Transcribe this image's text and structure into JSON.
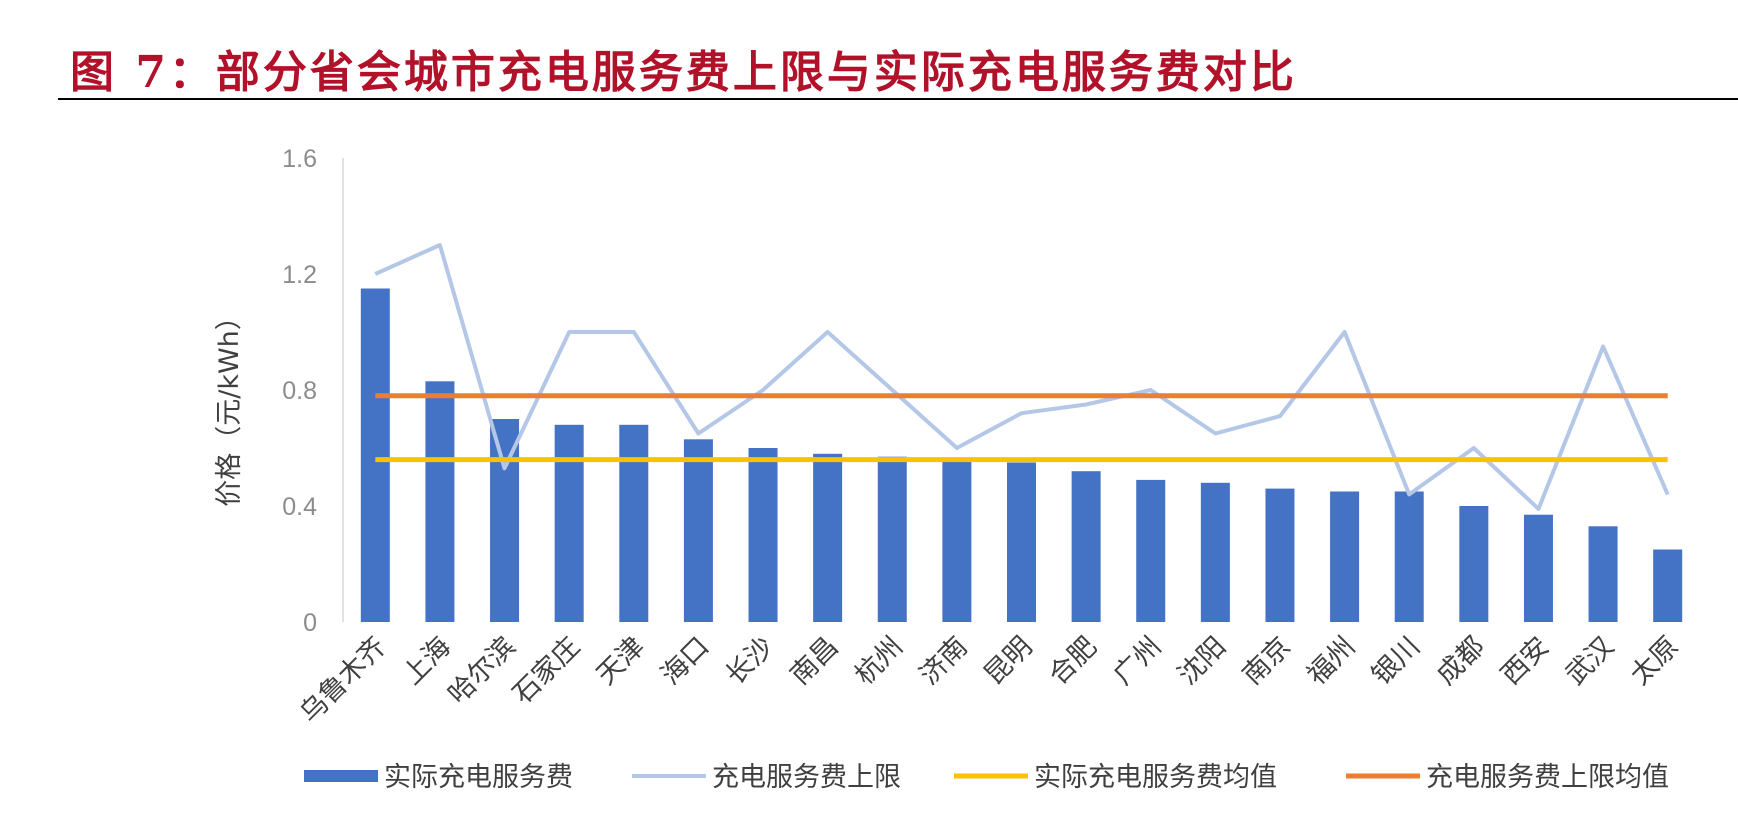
{
  "figure": {
    "title": "图 7：部分省会城市充电服务费上限与实际充电服务费对比",
    "title_color": "#b2112a"
  },
  "chart_data": {
    "type": "bar",
    "title": "",
    "ylabel": "价格（元/kWh）",
    "xlabel": "",
    "ylim": [
      0,
      1.6
    ],
    "yticks": [
      "0",
      "0.4",
      "0.8",
      "1.2",
      "1.6"
    ],
    "grid": false,
    "legend_position": "bottom",
    "categories": [
      "乌鲁木齐",
      "上海",
      "哈尔滨",
      "石家庄",
      "天津",
      "海口",
      "长沙",
      "南昌",
      "杭州",
      "济南",
      "昆明",
      "合肥",
      "广州",
      "沈阳",
      "南京",
      "福州",
      "银川",
      "成都",
      "西安",
      "武汉",
      "太原"
    ],
    "series": [
      {
        "name": "实际充电服务费",
        "kind": "bar",
        "color": "#4472c4",
        "values": [
          1.15,
          0.83,
          0.7,
          0.68,
          0.68,
          0.63,
          0.6,
          0.58,
          0.57,
          0.56,
          0.55,
          0.52,
          0.49,
          0.48,
          0.46,
          0.45,
          0.45,
          0.4,
          0.37,
          0.33,
          0.25
        ]
      },
      {
        "name": "充电服务费上限",
        "kind": "line",
        "color": "#b4c7e7",
        "values": [
          1.2,
          1.3,
          0.53,
          1.0,
          1.0,
          0.65,
          0.8,
          1.0,
          0.8,
          0.6,
          0.72,
          0.75,
          0.8,
          0.65,
          0.71,
          1.0,
          0.44,
          0.6,
          0.39,
          0.95,
          0.44
        ]
      },
      {
        "name": "实际充电服务费均值",
        "kind": "hline",
        "color": "#ffc000",
        "value": 0.56
      },
      {
        "name": "充电服务费上限均值",
        "kind": "hline",
        "color": "#ed7d31",
        "value": 0.78
      }
    ]
  }
}
